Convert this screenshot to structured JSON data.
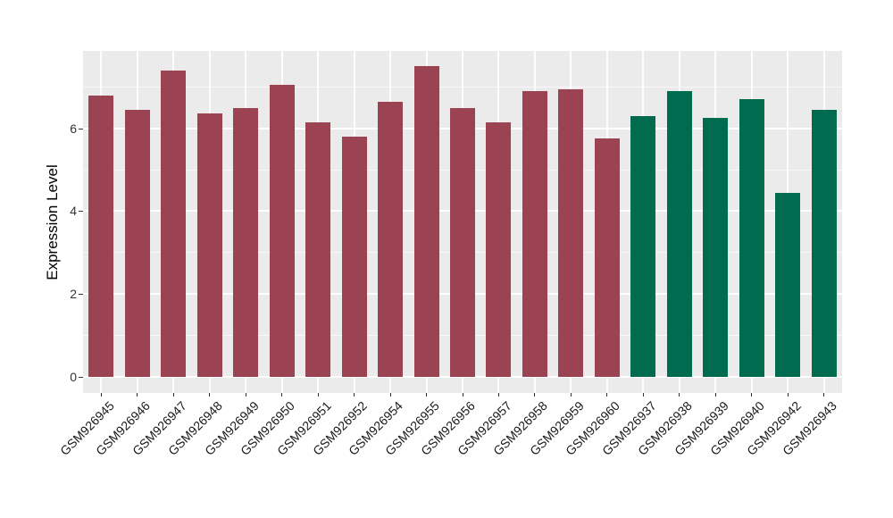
{
  "chart_data": {
    "type": "bar",
    "title": "",
    "ylabel": "Expression Level",
    "xlabel": "",
    "categories": [
      "GSM926945",
      "GSM926946",
      "GSM926947",
      "GSM926948",
      "GSM926949",
      "GSM926950",
      "GSM926951",
      "GSM926952",
      "GSM926954",
      "GSM926955",
      "GSM926956",
      "GSM926957",
      "GSM926958",
      "GSM926959",
      "GSM926960",
      "GSM926937",
      "GSM926938",
      "GSM926939",
      "GSM926940",
      "GSM926942",
      "GSM926943"
    ],
    "values": [
      6.8,
      6.45,
      7.4,
      6.35,
      6.5,
      7.05,
      6.15,
      5.8,
      6.65,
      7.5,
      6.5,
      6.15,
      6.9,
      6.95,
      5.75,
      6.3,
      6.9,
      6.25,
      6.7,
      4.45,
      6.45
    ],
    "bar_groups": [
      "A",
      "A",
      "A",
      "A",
      "A",
      "A",
      "A",
      "A",
      "A",
      "A",
      "A",
      "A",
      "A",
      "A",
      "A",
      "B",
      "B",
      "B",
      "B",
      "B",
      "B"
    ],
    "group_colors": {
      "A": "#9B4353",
      "B": "#006B4E"
    },
    "yticks": [
      0,
      2,
      4,
      6
    ],
    "ytick_labels": [
      "0",
      "2",
      "4",
      "6"
    ],
    "minor_yticks": [
      1,
      3,
      5,
      7
    ],
    "ylim": [
      -0.39,
      7.87
    ],
    "grid": true,
    "legend_position": "none",
    "panel_bg": "#EBEBEB",
    "grid_color": "#FFFFFF",
    "axis_text_color": "#333333"
  }
}
